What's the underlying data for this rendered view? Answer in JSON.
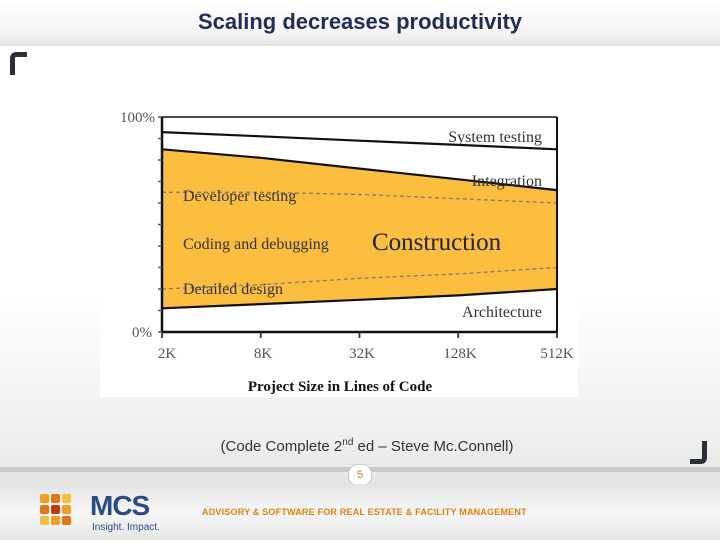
{
  "slide": {
    "title": "Scaling decreases productivity",
    "caption": {
      "pre": "(Code Complete 2",
      "sup": "nd",
      "post": " ed – Steve Mc.Connell)"
    },
    "page_number": "5"
  },
  "footer": {
    "brand": "MCS",
    "tagline": "Insight. Impact.",
    "slogan": "ADVISORY & SOFTWARE FOR REAL ESTATE & FACILITY MANAGEMENT"
  },
  "chart_data": {
    "type": "area",
    "title": "",
    "xlabel": "Project Size in Lines of Code",
    "ylabel": "",
    "x": [
      "2K",
      "8K",
      "32K",
      "128K",
      "512K"
    ],
    "ylim": [
      0,
      100
    ],
    "ytick_labels": [
      "0%",
      "100%"
    ],
    "boundaries": {
      "architecture_top": [
        11,
        13,
        15,
        17,
        20
      ],
      "coding_detailed_divider": [
        20,
        22,
        25,
        27,
        30
      ],
      "developer_coding_divider": [
        65,
        65,
        64,
        62,
        60
      ],
      "construction_top": [
        85,
        81,
        76,
        71,
        66
      ],
      "integration_top": [
        93,
        91,
        89,
        87,
        85
      ]
    },
    "series": [
      {
        "name": "Architecture",
        "role": "band"
      },
      {
        "name": "Detailed design",
        "role": "construction"
      },
      {
        "name": "Coding and debugging",
        "role": "construction"
      },
      {
        "name": "Developer testing",
        "role": "construction"
      },
      {
        "name": "Integration",
        "role": "band"
      },
      {
        "name": "System testing",
        "role": "band"
      }
    ],
    "annotations": [
      "Construction"
    ],
    "colors": {
      "construction": "#fbbe3f",
      "line": "#111111"
    }
  }
}
